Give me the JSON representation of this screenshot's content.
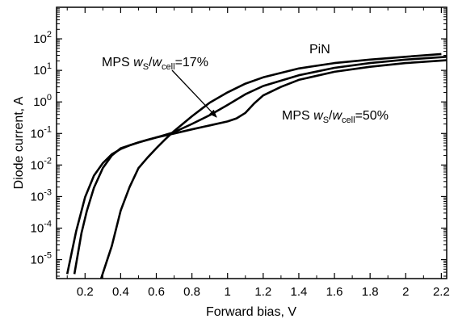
{
  "chart_data": {
    "type": "line",
    "title": "",
    "xlabel": "Forward bias, V",
    "ylabel": "Diode current, A",
    "xlim": [
      0.04,
      2.23
    ],
    "ylim_log10": [
      -5.6,
      3.0
    ],
    "yscale": "log",
    "grid": false,
    "legend": "none",
    "x_ticks": [
      {
        "value": 0.2,
        "label": "0.2"
      },
      {
        "value": 0.4,
        "label": "0.4"
      },
      {
        "value": 0.6,
        "label": "0.6"
      },
      {
        "value": 0.8,
        "label": "0.8"
      },
      {
        "value": 1.0,
        "label": "1"
      },
      {
        "value": 1.2,
        "label": "1.2"
      },
      {
        "value": 1.4,
        "label": "1.4"
      },
      {
        "value": 1.6,
        "label": "1.6"
      },
      {
        "value": 1.8,
        "label": "1.8"
      },
      {
        "value": 2.0,
        "label": "2"
      },
      {
        "value": 2.2,
        "label": "2.2"
      }
    ],
    "y_ticks": [
      {
        "exp": -5,
        "base": "10",
        "sup": "-5"
      },
      {
        "exp": -4,
        "base": "10",
        "sup": "-4"
      },
      {
        "exp": -3,
        "base": "10",
        "sup": "-3"
      },
      {
        "exp": -2,
        "base": "10",
        "sup": "-2"
      },
      {
        "exp": -1,
        "base": "10",
        "sup": "-1"
      },
      {
        "exp": 0,
        "base": "10",
        "sup": "0"
      },
      {
        "exp": 1,
        "base": "10",
        "sup": "1"
      },
      {
        "exp": 2,
        "base": "10",
        "sup": "2"
      }
    ],
    "series": [
      {
        "label_key": "pin",
        "x": [
          0.29,
          0.35,
          0.4,
          0.45,
          0.5,
          0.55,
          0.6,
          0.65,
          0.7,
          0.8,
          0.9,
          1.0,
          1.1,
          1.2,
          1.4,
          1.6,
          1.8,
          2.0,
          2.2
        ],
        "y": [
          2.5e-06,
          2.7e-05,
          0.00036,
          0.002,
          0.008,
          0.017,
          0.034,
          0.065,
          0.12,
          0.35,
          0.95,
          2.0,
          3.8,
          6.0,
          11.5,
          17.0,
          22.0,
          27.0,
          33.0
        ]
      },
      {
        "label_key": "mps17",
        "x": [
          0.14,
          0.18,
          0.21,
          0.25,
          0.3,
          0.35,
          0.4,
          0.5,
          0.6,
          0.7,
          0.8,
          0.9,
          1.0,
          1.1,
          1.2,
          1.4,
          1.6,
          1.8,
          2.0,
          2.23
        ],
        "y": [
          3.5e-06,
          7e-05,
          0.00035,
          0.0019,
          0.008,
          0.02,
          0.034,
          0.052,
          0.075,
          0.11,
          0.2,
          0.38,
          0.8,
          1.75,
          3.2,
          7.0,
          12.0,
          17.0,
          22.0,
          27.0
        ]
      },
      {
        "label_key": "mps50",
        "x": [
          0.1,
          0.15,
          0.2,
          0.25,
          0.3,
          0.35,
          0.4,
          0.45,
          0.5,
          0.55,
          0.6,
          0.7,
          0.8,
          0.9,
          1.0,
          1.05,
          1.1,
          1.15,
          1.2,
          1.3,
          1.4,
          1.6,
          1.8,
          2.0,
          2.23
        ],
        "y": [
          3.5e-06,
          8e-05,
          0.00095,
          0.0046,
          0.0115,
          0.022,
          0.032,
          0.042,
          0.052,
          0.063,
          0.075,
          0.1,
          0.135,
          0.18,
          0.24,
          0.3,
          0.45,
          0.9,
          1.6,
          3.0,
          5.0,
          9.0,
          13.0,
          17.0,
          21.0
        ]
      }
    ],
    "annotations": {
      "pin": {
        "text": "PiN"
      },
      "mps17": {
        "prefix": "MPS ",
        "w": "w",
        "sub1": "S",
        "slash": "/",
        "w2": "w",
        "sub2": "cell",
        "suffix": "=17%"
      },
      "mps50": {
        "prefix": "MPS ",
        "w": "w",
        "sub1": "S",
        "slash": "/",
        "w2": "w",
        "sub2": "cell",
        "suffix": "=50%"
      }
    }
  }
}
